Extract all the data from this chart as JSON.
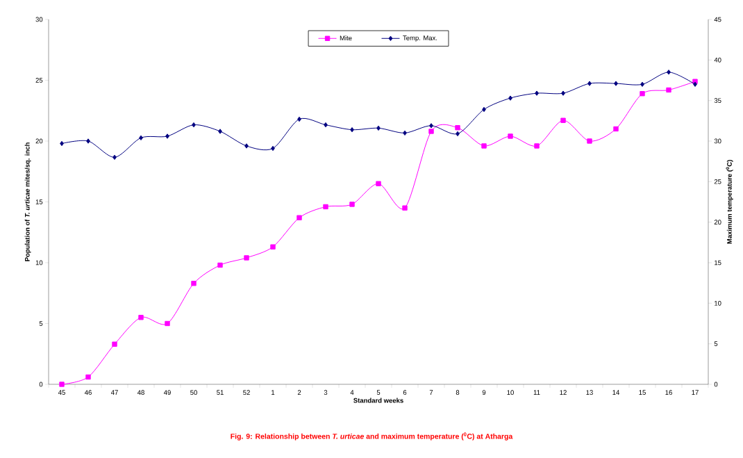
{
  "chart_data": {
    "type": "line",
    "categories": [
      "45",
      "46",
      "47",
      "48",
      "49",
      "50",
      "51",
      "52",
      "1",
      "2",
      "3",
      "4",
      "5",
      "6",
      "7",
      "8",
      "9",
      "10",
      "11",
      "12",
      "13",
      "14",
      "15",
      "16",
      "17"
    ],
    "series": [
      {
        "name": "Mite",
        "color": "#ff00ff",
        "marker": "square",
        "axis": "y",
        "values": [
          0,
          0.6,
          3.3,
          5.5,
          5.0,
          8.3,
          9.8,
          10.4,
          11.3,
          13.7,
          14.6,
          14.8,
          16.5,
          14.5,
          20.8,
          21.1,
          19.6,
          20.4,
          19.6,
          21.7,
          20.0,
          21.0,
          23.9,
          24.2,
          24.9
        ]
      },
      {
        "name": "Temp. Max.",
        "color": "#000080",
        "marker": "diamond",
        "axis": "y2",
        "values": [
          29.7,
          30.0,
          28.0,
          30.4,
          30.6,
          32.0,
          31.2,
          29.4,
          29.1,
          32.7,
          32.0,
          31.4,
          31.6,
          31.0,
          31.9,
          30.9,
          33.9,
          35.3,
          35.9,
          35.9,
          37.1,
          37.1,
          37.0,
          38.5,
          37.0
        ]
      }
    ],
    "xlabel": "Standard weeks",
    "ylabel": "Population of *T. urticae* mites/sq. inch",
    "y2label": "Maximum temperature ($^{0}$C)",
    "ylim": [
      0,
      30
    ],
    "yticks": [
      0,
      5,
      10,
      15,
      20,
      25,
      30
    ],
    "y2lim": [
      0,
      45
    ],
    "y2ticks": [
      0,
      5,
      10,
      15,
      20,
      25,
      30,
      35,
      40,
      45
    ],
    "legend": "top",
    "grid": false,
    "line_style": "solid",
    "annotations": [
      "Fig. 9: Relationship between *T. urticae* and maximum temperature ($^{0}$C) at Atharga"
    ]
  }
}
